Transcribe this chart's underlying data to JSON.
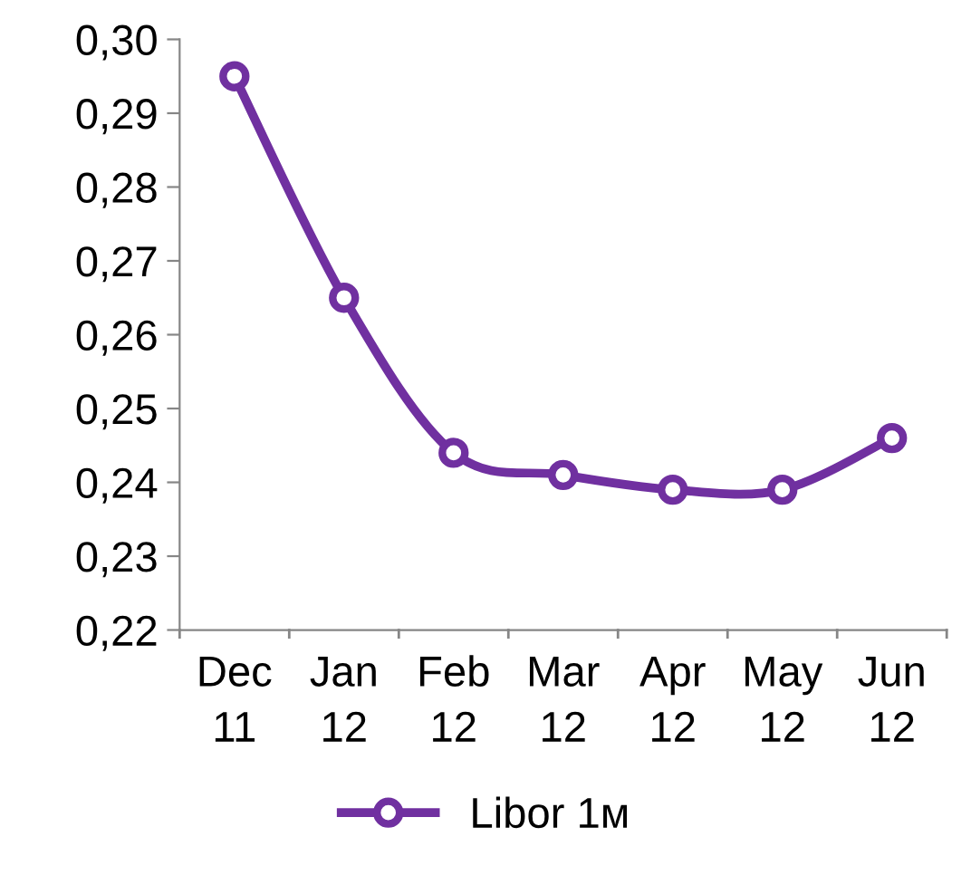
{
  "chart_data": {
    "type": "line",
    "categories": [
      "Dec\n11",
      "Jan\n12",
      "Feb\n12",
      "Mar\n12",
      "Apr\n12",
      "May\n12",
      "Jun\n12"
    ],
    "series": [
      {
        "name": "Libor 1м",
        "color": "#7030a0",
        "values": [
          0.295,
          0.265,
          0.244,
          0.241,
          0.239,
          0.239,
          0.246
        ]
      }
    ],
    "ylim": [
      0.22,
      0.3
    ],
    "yticks": [
      {
        "value": 0.22,
        "label": "0,22"
      },
      {
        "value": 0.23,
        "label": "0,23"
      },
      {
        "value": 0.24,
        "label": "0,24"
      },
      {
        "value": 0.25,
        "label": "0,25"
      },
      {
        "value": 0.26,
        "label": "0,26"
      },
      {
        "value": 0.27,
        "label": "0,27"
      },
      {
        "value": 0.28,
        "label": "0,28"
      },
      {
        "value": 0.29,
        "label": "0,29"
      },
      {
        "value": 0.3,
        "label": "0,30"
      }
    ],
    "grid": false,
    "legend": "bottom",
    "marker": "circle",
    "line_style": "solid"
  }
}
